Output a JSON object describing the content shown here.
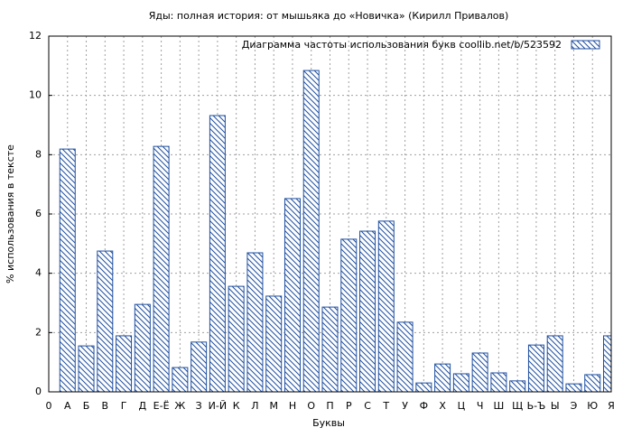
{
  "chart_data": {
    "type": "bar",
    "title": "Яды: полная история: от мышьяка до «Новичка» (Кирилл Привалов)",
    "x_label": "Буквы",
    "y_label": "% использования в тексте",
    "categories": [
      "0",
      "А",
      "Б",
      "В",
      "Г",
      "Д",
      "Е-Ё",
      "Ж",
      "З",
      "И-Й",
      "К",
      "Л",
      "М",
      "Н",
      "О",
      "П",
      "Р",
      "С",
      "Т",
      "У",
      "Ф",
      "Х",
      "Ц",
      "Ч",
      "Ш",
      "Щ",
      "Ь-Ъ",
      "Ы",
      "Э",
      "Ю",
      "Я"
    ],
    "series": [
      {
        "name": "Диаграмма частоты использования букв  coollib.net/b/523592",
        "color": "#1f4fa0",
        "values": [
          null,
          8.19,
          1.55,
          4.75,
          1.89,
          2.95,
          8.28,
          0.82,
          1.68,
          9.32,
          3.56,
          4.69,
          3.23,
          6.52,
          10.84,
          2.86,
          5.15,
          5.42,
          5.76,
          2.35,
          0.3,
          0.94,
          0.61,
          1.31,
          0.64,
          0.37,
          1.58,
          1.89,
          0.27,
          0.58,
          1.89
        ]
      }
    ],
    "ylim": [
      0,
      12
    ],
    "yticks": [
      0,
      2,
      4,
      6,
      8,
      10,
      12
    ],
    "grid": true,
    "legend": "top-right"
  }
}
